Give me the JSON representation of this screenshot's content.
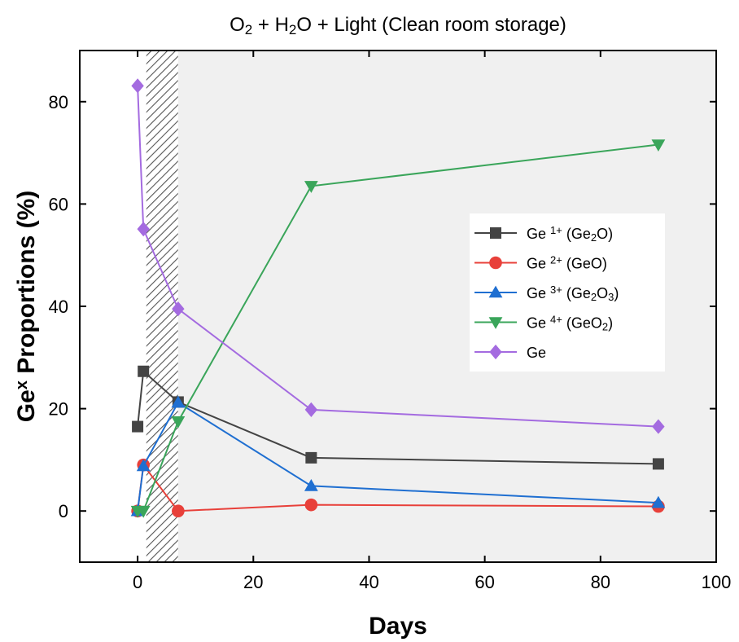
{
  "chart_data": {
    "type": "line",
    "title": {
      "parts": [
        {
          "text": "O"
        },
        {
          "text": "2",
          "sub": true
        },
        {
          "text": " + H"
        },
        {
          "text": "2",
          "sub": true
        },
        {
          "text": "O + Light (Clean room storage)"
        }
      ]
    },
    "xlabel": "Days",
    "ylabel": {
      "parts": [
        {
          "text": "Ge"
        },
        {
          "text": "x",
          "sup": true
        },
        {
          "text": " Proportions (%)"
        }
      ]
    },
    "xlim": [
      -10,
      100
    ],
    "ylim": [
      -10,
      90
    ],
    "xticks": [
      0,
      20,
      40,
      60,
      80,
      100
    ],
    "yticks": [
      0,
      20,
      40,
      60,
      80
    ],
    "grid": false,
    "legend_position": "right",
    "shaded_regions": [
      {
        "from": 1.5,
        "to": 7,
        "style": "hatched"
      },
      {
        "from": 7,
        "to": 100,
        "style": "light-gray-fill"
      }
    ],
    "series": [
      {
        "name": {
          "parts": [
            {
              "text": "Ge "
            },
            {
              "text": "1+",
              "sup": true
            },
            {
              "text": " (Ge"
            },
            {
              "text": "2",
              "sub": true
            },
            {
              "text": "O)"
            }
          ]
        },
        "color": "#444444",
        "marker": "square",
        "x": [
          0,
          1,
          7,
          30,
          90
        ],
        "y": [
          16.5,
          27.3,
          21.3,
          10.4,
          9.2
        ]
      },
      {
        "name": {
          "parts": [
            {
              "text": "Ge "
            },
            {
              "text": "2+",
              "sup": true
            },
            {
              "text": " (GeO)"
            }
          ]
        },
        "color": "#e8403a",
        "marker": "circle",
        "x": [
          0,
          1,
          7,
          30,
          90
        ],
        "y": [
          0,
          9.0,
          0,
          1.2,
          0.9
        ]
      },
      {
        "name": {
          "parts": [
            {
              "text": "Ge "
            },
            {
              "text": "3+",
              "sup": true
            },
            {
              "text": " (Ge"
            },
            {
              "text": "2",
              "sub": true
            },
            {
              "text": "O"
            },
            {
              "text": "3",
              "sub": true
            },
            {
              "text": ")"
            }
          ]
        },
        "color": "#1f6fd1",
        "marker": "triangle-up",
        "x": [
          0,
          1,
          7,
          30,
          90
        ],
        "y": [
          0,
          8.8,
          21.2,
          4.9,
          1.6
        ]
      },
      {
        "name": {
          "parts": [
            {
              "text": "Ge "
            },
            {
              "text": "4+",
              "sup": true
            },
            {
              "text": " (GeO"
            },
            {
              "text": "2",
              "sub": true
            },
            {
              "text": ")"
            }
          ]
        },
        "color": "#3aa55a",
        "marker": "triangle-down",
        "x": [
          0,
          1,
          7,
          30,
          90
        ],
        "y": [
          0,
          0,
          17.5,
          63.5,
          71.6
        ]
      },
      {
        "name": {
          "parts": [
            {
              "text": "Ge"
            }
          ]
        },
        "color": "#a46be0",
        "marker": "diamond",
        "x": [
          0,
          1,
          7,
          30,
          90
        ],
        "y": [
          83.1,
          55.1,
          39.5,
          19.8,
          16.5
        ]
      }
    ]
  }
}
